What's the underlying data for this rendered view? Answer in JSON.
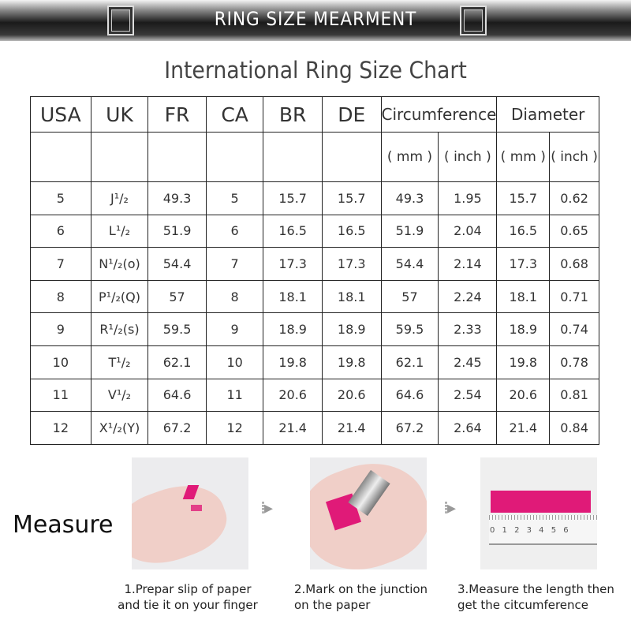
{
  "banner": {
    "title": "RING SIZE MEARMENT"
  },
  "subtitle": "International Ring Size Chart",
  "table": {
    "headers": [
      "USA",
      "UK",
      "FR",
      "CA",
      "BR",
      "DE",
      "Circumference",
      "Diameter"
    ],
    "subheaders": [
      "( mm )",
      "( inch )",
      "( mm )",
      "( inch )"
    ],
    "rows": [
      [
        "5",
        "J¹/₂",
        "49.3",
        "5",
        "15.7",
        "15.7",
        "49.3",
        "1.95",
        "15.7",
        "0.62"
      ],
      [
        "6",
        "L¹/₂",
        "51.9",
        "6",
        "16.5",
        "16.5",
        "51.9",
        "2.04",
        "16.5",
        "0.65"
      ],
      [
        "7",
        "N¹/₂(o)",
        "54.4",
        "7",
        "17.3",
        "17.3",
        "54.4",
        "2.14",
        "17.3",
        "0.68"
      ],
      [
        "8",
        "P¹/₂(Q)",
        "57",
        "8",
        "18.1",
        "18.1",
        "57",
        "2.24",
        "18.1",
        "0.71"
      ],
      [
        "9",
        "R¹/₂(s)",
        "59.5",
        "9",
        "18.9",
        "18.9",
        "59.5",
        "2.33",
        "18.9",
        "0.74"
      ],
      [
        "10",
        "T¹/₂",
        "62.1",
        "10",
        "19.8",
        "19.8",
        "62.1",
        "2.45",
        "19.8",
        "0.78"
      ],
      [
        "11",
        "V¹/₂",
        "64.6",
        "11",
        "20.6",
        "20.6",
        "64.6",
        "2.54",
        "20.6",
        "0.81"
      ],
      [
        "12",
        "X¹/₂(Y)",
        "67.2",
        "12",
        "21.4",
        "21.4",
        "67.2",
        "2.64",
        "21.4",
        "0.84"
      ]
    ]
  },
  "measure": {
    "label": "Measure",
    "ruler_ticks": "0 1 2 3 4 5 6",
    "steps": [
      {
        "line1": "1.Prepar slip of paper",
        "line2": "and tie it on your finger"
      },
      {
        "line1": "2.Mark on the junction",
        "line2": "on the paper"
      },
      {
        "line1": "3.Measure the length then",
        "line2": "get the citcumference"
      }
    ]
  },
  "colors": {
    "accent": "#e01a78"
  }
}
